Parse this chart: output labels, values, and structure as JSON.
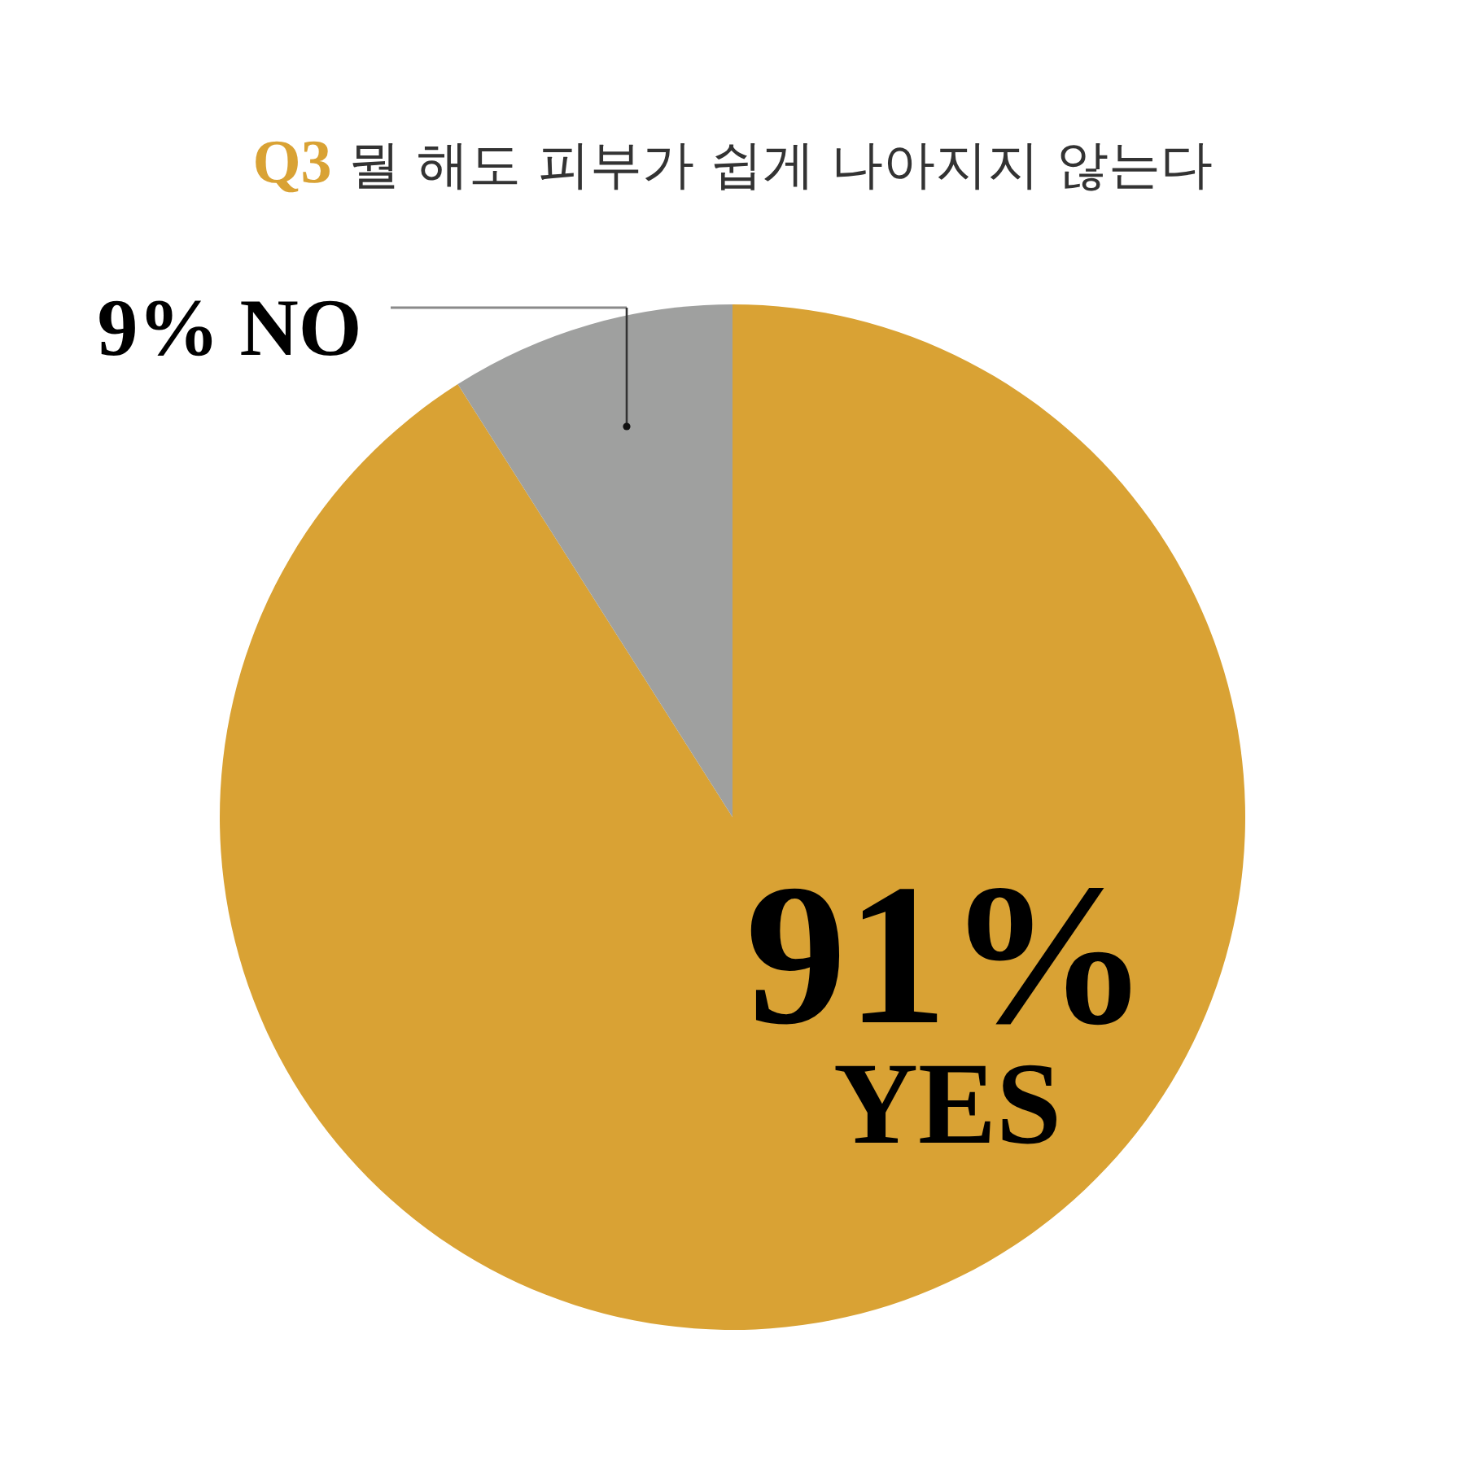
{
  "chart_data": {
    "type": "pie",
    "title": "Q3 뭘 해도 피부가 쉽게 나아지지 않는다",
    "categories": [
      "YES",
      "NO"
    ],
    "values": [
      91,
      9
    ],
    "colors": [
      "#d9a234",
      "#9fa09f"
    ],
    "value_labels": [
      "91%",
      "9%"
    ]
  }
}
